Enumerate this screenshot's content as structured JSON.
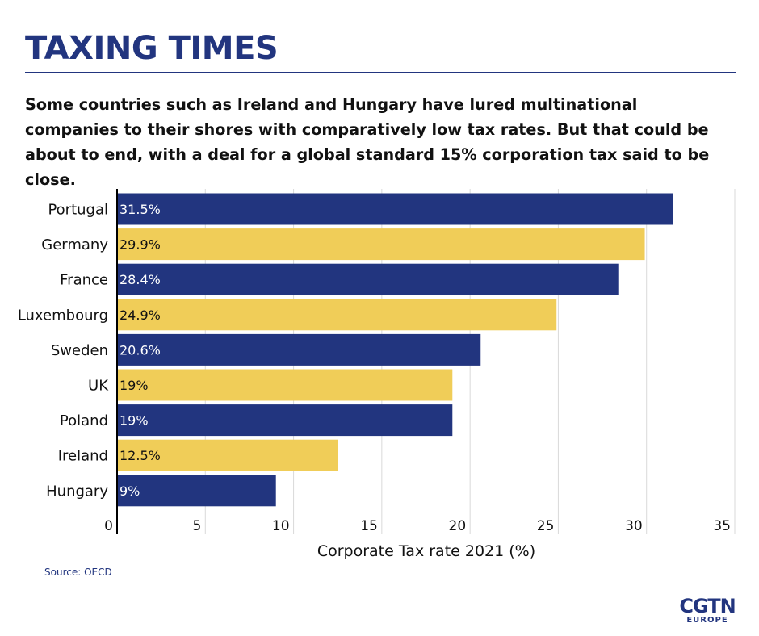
{
  "header": {
    "title": "TAXING TIMES",
    "subtitle": "Some countries such as Ireland and Hungary have lured multinational companies to their shores with comparatively low tax rates. But that could be about to end, with a deal for a global standard 15% corporation tax said to be close."
  },
  "footer": {
    "source": "Source: OECD",
    "logo_main": "CGTN",
    "logo_sub": "EUROPE"
  },
  "colors": {
    "navy": "#22357f",
    "yellow": "#f0cd58",
    "grid": "#d9d9d9"
  },
  "chart_data": {
    "type": "bar",
    "orientation": "horizontal",
    "categories": [
      "Portugal",
      "Germany",
      "France",
      "Luxembourg",
      "Sweden",
      "UK",
      "Poland",
      "Ireland",
      "Hungary"
    ],
    "values": [
      31.5,
      29.9,
      28.4,
      24.9,
      20.6,
      19,
      19,
      12.5,
      9
    ],
    "value_labels": [
      "31.5%",
      "29.9%",
      "28.4%",
      "24.9%",
      "20.6%",
      "19%",
      "19%",
      "12.5%",
      "9%"
    ],
    "bar_colors": [
      "#22357f",
      "#f0cd58",
      "#22357f",
      "#f0cd58",
      "#22357f",
      "#f0cd58",
      "#22357f",
      "#f0cd58",
      "#22357f"
    ],
    "label_colors": [
      "#ffffff",
      "#111111",
      "#ffffff",
      "#111111",
      "#ffffff",
      "#111111",
      "#ffffff",
      "#111111",
      "#ffffff"
    ],
    "xlabel": "Corporate Tax rate 2021 (%)",
    "xlim": [
      0,
      35
    ],
    "xticks": [
      0,
      5,
      10,
      15,
      20,
      25,
      30,
      35
    ],
    "grid": true
  }
}
